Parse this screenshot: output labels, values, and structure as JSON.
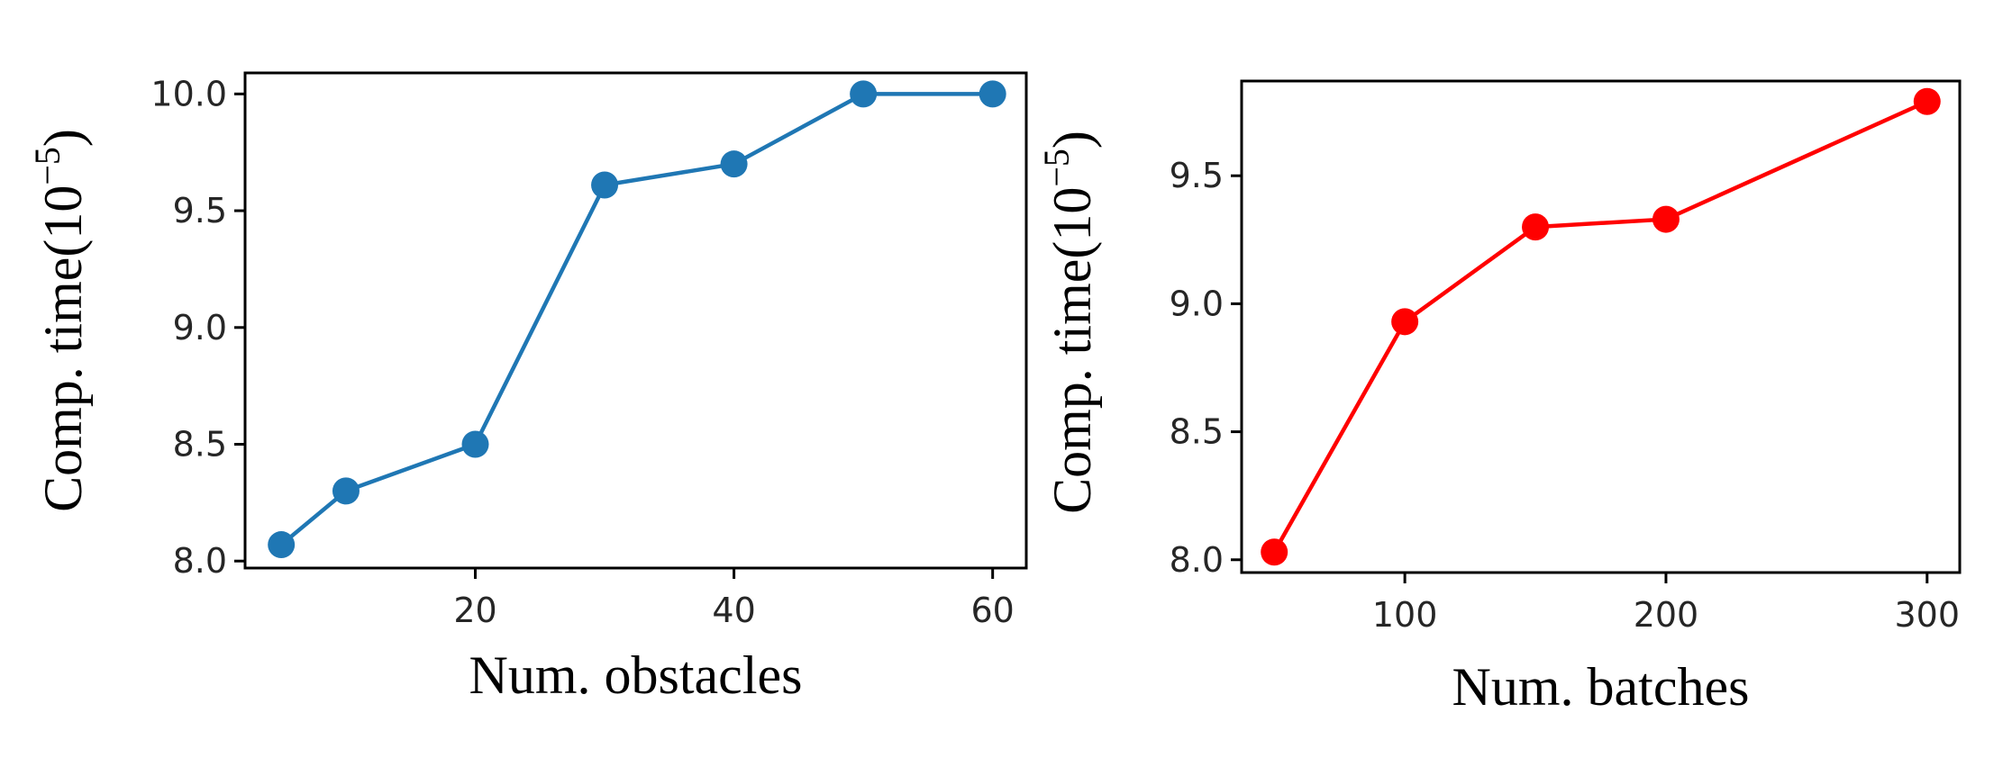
{
  "chart_data": [
    {
      "type": "line",
      "xlabel": "Num. obstacles",
      "ylabel_prefix": "Comp. time(10",
      "ylabel_exponent": "−5",
      "ylabel_suffix": ")",
      "x": [
        5,
        10,
        20,
        30,
        40,
        50,
        60
      ],
      "series": [
        {
          "values": [
            8.07,
            8.3,
            8.5,
            9.61,
            9.7,
            10.0,
            10.0
          ],
          "color": "#1f77b4"
        }
      ],
      "xlim": [
        2.2,
        62.6
      ],
      "ylim": [
        7.97,
        10.09
      ],
      "xticks": [
        20,
        40,
        60
      ],
      "xtick_labels": [
        "20",
        "40",
        "60"
      ],
      "yticks": [
        8.0,
        8.5,
        9.0,
        9.5,
        10.0
      ],
      "ytick_labels": [
        "8.0",
        "8.5",
        "9.0",
        "9.5",
        "10.0"
      ],
      "grid": false
    },
    {
      "type": "line",
      "xlabel": "Num. batches",
      "ylabel_prefix": "Comp. time(10",
      "ylabel_exponent": "−5",
      "ylabel_suffix": ")",
      "x": [
        50,
        100,
        150,
        200,
        300
      ],
      "series": [
        {
          "values": [
            8.03,
            8.93,
            9.3,
            9.33,
            9.79
          ],
          "color": "#ff0000"
        }
      ],
      "xlim": [
        37.5,
        312.5
      ],
      "ylim": [
        7.95,
        9.87
      ],
      "xticks": [
        100,
        200,
        300
      ],
      "xtick_labels": [
        "100",
        "200",
        "300"
      ],
      "yticks": [
        8.0,
        8.5,
        9.0,
        9.5
      ],
      "ytick_labels": [
        "8.0",
        "8.5",
        "9.0",
        "9.5"
      ],
      "grid": false
    }
  ]
}
